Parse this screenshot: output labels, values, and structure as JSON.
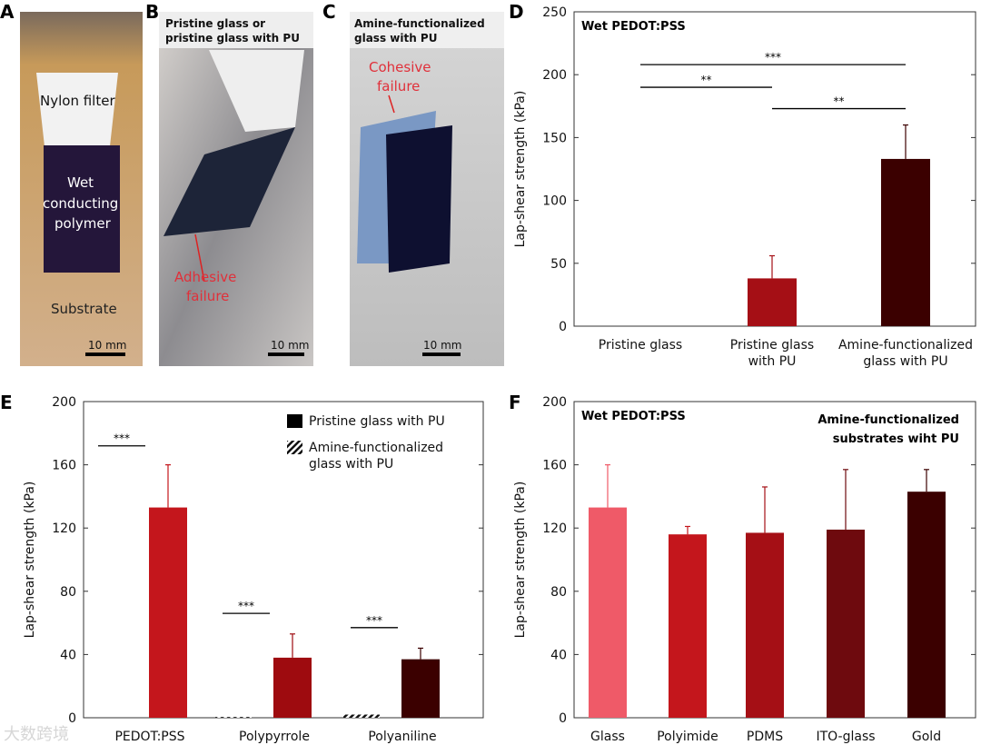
{
  "panels": {
    "A": {
      "letter": "A",
      "labels": [
        "Nylon filter",
        "Wet",
        "conducting",
        "polymer",
        "Substrate"
      ],
      "scale": "10 mm"
    },
    "B": {
      "letter": "B",
      "caption": [
        "Pristine glass or",
        "pristine glass with PU"
      ],
      "annotation": [
        "Adhesive",
        "failure"
      ],
      "scale": "10 mm"
    },
    "C": {
      "letter": "C",
      "caption": [
        "Amine-functionalized",
        "glass with PU"
      ],
      "annotation": [
        "Cohesive",
        "failure"
      ],
      "scale": "10 mm"
    }
  },
  "watermark": "大数跨境",
  "chart_data": [
    {
      "id": "D",
      "letter": "D",
      "type": "bar",
      "title": "Wet PEDOT:PSS",
      "ylabel": "Lap-shear strength (kPa)",
      "ylim": [
        0,
        250
      ],
      "yticks": [
        0,
        50,
        100,
        150,
        200,
        250
      ],
      "categories": [
        [
          "Pristine glass"
        ],
        [
          "Pristine glass",
          "with PU"
        ],
        [
          "Amine-functionalized",
          "glass with PU"
        ]
      ],
      "values": [
        0,
        38,
        133
      ],
      "errors": [
        0,
        18,
        27
      ],
      "colors": [
        "#c4161c",
        "#a50f15",
        "#3b0000"
      ],
      "significance": [
        {
          "from": 0,
          "to": 2,
          "y": 208,
          "label": "***"
        },
        {
          "from": 0,
          "to": 1,
          "y": 190,
          "label": "**"
        },
        {
          "from": 1,
          "to": 2,
          "y": 173,
          "label": "**"
        }
      ]
    },
    {
      "id": "E",
      "letter": "E",
      "type": "bar",
      "ylabel": "Lap-shear strength (kPa)",
      "ylim": [
        0,
        200
      ],
      "yticks": [
        0,
        40,
        80,
        120,
        160,
        200
      ],
      "categories": [
        [
          "PEDOT:PSS"
        ],
        [
          "Polypyrrole"
        ],
        [
          "Polyaniline"
        ]
      ],
      "legend": {
        "placement": "top-right",
        "entries": [
          "Pristine glass with PU",
          "Amine-functionalized glass with PU"
        ]
      },
      "series": [
        {
          "name": "Amine-functionalized glass with PU (hatched)",
          "values": [
            0,
            0.5,
            2
          ]
        },
        {
          "name": "Pristine glass with PU (solid)",
          "values": [
            133,
            38,
            37
          ],
          "errors": [
            27,
            15,
            7
          ]
        }
      ],
      "colors": [
        "#c4161c",
        "#9e0b0f",
        "#3b0000"
      ],
      "significance": [
        {
          "group": 0,
          "y": 172,
          "label": "***"
        },
        {
          "group": 1,
          "y": 66,
          "label": "***"
        },
        {
          "group": 2,
          "y": 57,
          "label": "***"
        }
      ]
    },
    {
      "id": "F",
      "letter": "F",
      "type": "bar",
      "title": "Wet PEDOT:PSS",
      "subtitle": [
        "Amine-functionalized",
        "substrates wiht PU"
      ],
      "ylabel": "Lap-shear strength (kPa)",
      "ylim": [
        0,
        200
      ],
      "yticks": [
        0,
        40,
        80,
        120,
        160,
        200
      ],
      "categories": [
        [
          "Glass"
        ],
        [
          "Polyimide"
        ],
        [
          "PDMS"
        ],
        [
          "ITO-glass"
        ],
        [
          "Gold"
        ]
      ],
      "values": [
        133,
        116,
        117,
        119,
        143
      ],
      "errors": [
        27,
        5,
        29,
        38,
        14
      ],
      "colors": [
        "#ef5a68",
        "#c4161c",
        "#a50f15",
        "#6e0a0e",
        "#3b0000"
      ]
    }
  ]
}
